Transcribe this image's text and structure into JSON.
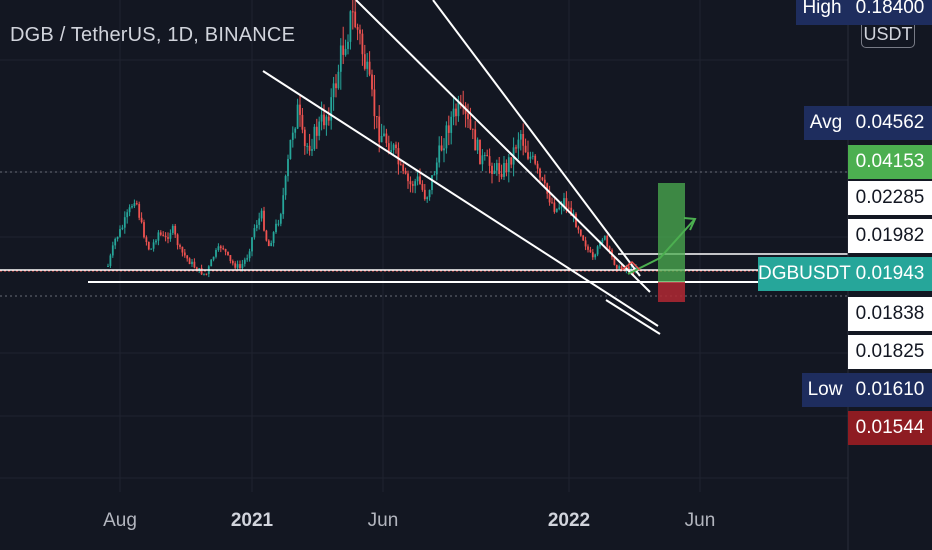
{
  "header": {
    "title": "DGB / TetherUS, 1D, BINANCE",
    "unit_badge": "USDT"
  },
  "colors": {
    "background": "#131722",
    "candle_up": "#26a69a",
    "candle_down": "#ef5350",
    "drawing_white": "#ffffff",
    "target_green": "#4caf50",
    "stop_red": "#b22833",
    "label_navy": "#1e2d5e",
    "label_green": "#4caf50",
    "label_teal": "#26a69a",
    "label_red": "#8e1c22",
    "label_white": "#ffffff"
  },
  "price_scale": {
    "labels": [
      {
        "id": "high",
        "side_text": "High",
        "value": "0.18400",
        "price": 0.184,
        "style": "navy"
      },
      {
        "id": "avg",
        "side_text": "Avg",
        "value": "0.04562",
        "price": 0.04562,
        "style": "navy"
      },
      {
        "id": "target",
        "side_text": "",
        "value": "0.04153",
        "price": 0.04153,
        "style": "green"
      },
      {
        "id": "level-1",
        "side_text": "",
        "value": "0.02285",
        "price": 0.02285,
        "style": "white"
      },
      {
        "id": "level-2",
        "side_text": "",
        "value": "0.01982",
        "price": 0.01982,
        "style": "white"
      },
      {
        "id": "current",
        "side_text": "DGBUSDT",
        "value": "0.01943",
        "price": 0.01943,
        "style": "teal"
      },
      {
        "id": "level-3",
        "side_text": "",
        "value": "0.01838",
        "price": 0.01838,
        "style": "white"
      },
      {
        "id": "level-4",
        "side_text": "",
        "value": "0.01825",
        "price": 0.01825,
        "style": "white"
      },
      {
        "id": "low",
        "side_text": "Low",
        "value": "0.01610",
        "price": 0.0161,
        "style": "navy"
      },
      {
        "id": "stop",
        "side_text": "",
        "value": "0.01544",
        "price": 0.01544,
        "style": "red"
      }
    ]
  },
  "time_axis": {
    "ticks": [
      {
        "label": "Aug",
        "bold": false
      },
      {
        "label": "2021",
        "bold": true
      },
      {
        "label": "Jun",
        "bold": false
      },
      {
        "label": "2022",
        "bold": true
      },
      {
        "label": "Jun",
        "bold": false
      }
    ]
  },
  "chart_data": {
    "type": "candlestick",
    "title": "DGB / TetherUS, 1D, BINANCE",
    "symbol": "DGBUSDT",
    "interval": "1D",
    "exchange": "BINANCE",
    "quote_unit": "USDT",
    "x_ticks": [
      "Aug",
      "2021",
      "Jun",
      "2022",
      "Jun"
    ],
    "y_scale": "log",
    "last_price": 0.01943,
    "high": 0.184,
    "low": 0.0161,
    "avg": 0.04562,
    "trade_setup": {
      "target": 0.04153,
      "stop": 0.01544
    }
  }
}
